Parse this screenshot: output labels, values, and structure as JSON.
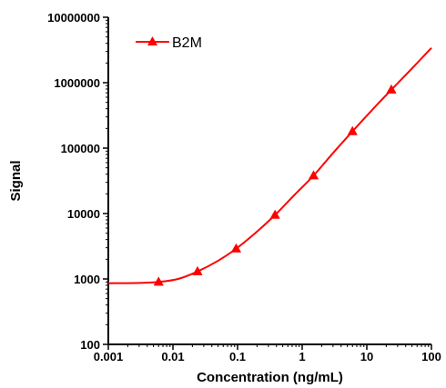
{
  "chart_data": {
    "type": "line",
    "xlabel": "Concentration (ng/mL)",
    "ylabel": "Signal",
    "x_scale": "log",
    "y_scale": "log",
    "xlim": [
      0.001,
      100
    ],
    "ylim": [
      100,
      10000000
    ],
    "x_ticks": [
      "0.001",
      "0.01",
      "0.1",
      "1",
      "10",
      "100"
    ],
    "y_ticks": [
      "100",
      "1000",
      "10000",
      "100000",
      "1000000",
      "10000000"
    ],
    "grid": false,
    "legend_position": "top-left",
    "series": [
      {
        "name": "B2M",
        "color": "#ff0000",
        "marker": "triangle",
        "points": [
          {
            "x": 0.006,
            "y": 900
          },
          {
            "x": 0.024,
            "y": 1300
          },
          {
            "x": 0.095,
            "y": 2900
          },
          {
            "x": 0.38,
            "y": 9500
          },
          {
            "x": 1.5,
            "y": 38000
          },
          {
            "x": 6.0,
            "y": 180000
          },
          {
            "x": 24,
            "y": 780000
          }
        ],
        "fit_curve": [
          {
            "x": 0.001,
            "y": 860
          },
          {
            "x": 0.003,
            "y": 870
          },
          {
            "x": 0.006,
            "y": 900
          },
          {
            "x": 0.012,
            "y": 1000
          },
          {
            "x": 0.024,
            "y": 1300
          },
          {
            "x": 0.05,
            "y": 1900
          },
          {
            "x": 0.095,
            "y": 2900
          },
          {
            "x": 0.2,
            "y": 5300
          },
          {
            "x": 0.38,
            "y": 9500
          },
          {
            "x": 0.75,
            "y": 19000
          },
          {
            "x": 1.5,
            "y": 38000
          },
          {
            "x": 3.0,
            "y": 84000
          },
          {
            "x": 6.0,
            "y": 180000
          },
          {
            "x": 12,
            "y": 380000
          },
          {
            "x": 24,
            "y": 780000
          },
          {
            "x": 50,
            "y": 1650000
          },
          {
            "x": 100,
            "y": 3400000
          }
        ]
      }
    ]
  }
}
